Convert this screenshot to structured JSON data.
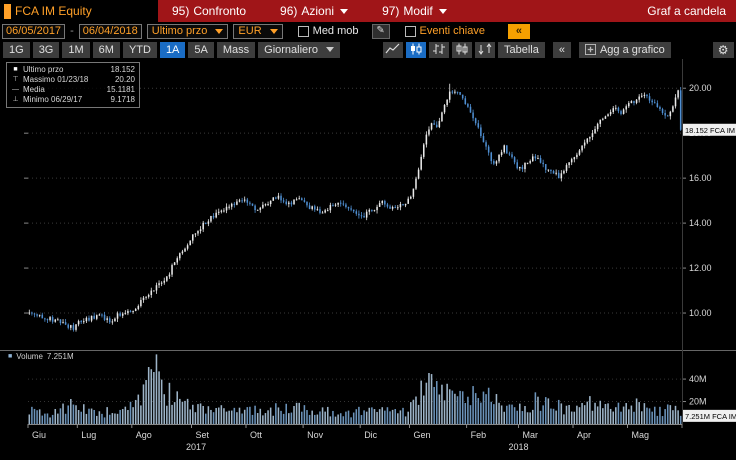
{
  "titlebar": {
    "security": "FCA IM Equity",
    "menus": [
      {
        "key": "95)",
        "label": "Confronto"
      },
      {
        "key": "96)",
        "label": "Azioni"
      },
      {
        "key": "97)",
        "label": "Modif"
      }
    ],
    "right_label": "Graf a candela"
  },
  "toolbar": {
    "date_from": "06/05/2017",
    "date_separator": "-",
    "date_to": "06/04/2018",
    "price_field": "Ultimo przo",
    "currency": "EUR",
    "med_mob": {
      "label": "Med mob",
      "checked": false
    },
    "eventi_chiave": {
      "label": "Eventi chiave",
      "checked": false
    },
    "pencil_icon": "✎",
    "panel_toggle_icon": "«"
  },
  "chart_toolbar": {
    "periods": [
      "1G",
      "3G",
      "1M",
      "6M",
      "YTD",
      "1A",
      "5A",
      "Mass"
    ],
    "selected_period": "1A",
    "frequency": "Giornaliero",
    "table_label": "Tabella",
    "collapse_icon": "«",
    "add_chart_label": "Agg a grafico",
    "gear_icon": "⚙"
  },
  "legend": {
    "rows": [
      {
        "marker": "■",
        "label": "Ultimo przo",
        "value": "18.152"
      },
      {
        "marker": "⊤",
        "label": "Massimo 01/23/18",
        "value": "20.20"
      },
      {
        "marker": "—",
        "label": "Media",
        "value": "15.1181"
      },
      {
        "marker": "⊥",
        "label": "Minimo 06/29/17",
        "value": "9.1718"
      }
    ]
  },
  "volume_legend": {
    "marker": "■",
    "label": "Volume",
    "value": "7.251M"
  },
  "chart_data": {
    "type": "candlestick_with_volume",
    "security": "FCA IM Equity",
    "currency": "EUR",
    "frequency": "daily",
    "date_range": {
      "from": "06/05/2017",
      "to": "06/04/2018"
    },
    "last_price": 18.152,
    "high": {
      "date": "01/23/18",
      "value": 20.2,
      "index": 162
    },
    "low": {
      "date": "06/29/17",
      "value": 9.1718,
      "index": 17
    },
    "mean": 15.1181,
    "last_volume": 7.251,
    "price_axis_ticks": [
      20,
      18,
      16,
      14,
      12,
      10
    ],
    "price_axis_labels": [
      "20.00",
      "18.00",
      "16.00",
      "14.00",
      "12.00",
      "10.00"
    ],
    "price_marker_label": "18.152 FCA IM",
    "volume_axis_ticks": [
      40,
      20
    ],
    "volume_axis_labels": [
      "40M",
      "20M"
    ],
    "volume_marker_label": "7.251M FCA IM",
    "volume_unit": "M",
    "ylim_price": [
      8.4,
      21.3
    ],
    "ylim_volume": [
      0,
      65
    ],
    "num_candles": 252,
    "seed": 42,
    "months": [
      [
        "Giu",
        0
      ],
      [
        "Lug",
        19
      ],
      [
        "Ago",
        40
      ],
      [
        "Set",
        63
      ],
      [
        "Ott",
        84
      ],
      [
        "Nov",
        106
      ],
      [
        "Dic",
        128
      ],
      [
        "Gen",
        147
      ],
      [
        "Feb",
        169
      ],
      [
        "Mar",
        189
      ],
      [
        "Apr",
        210
      ],
      [
        "Mag",
        231
      ]
    ],
    "years": [
      [
        "2017",
        0.257
      ],
      [
        "2018",
        0.75
      ]
    ],
    "price_keypoints": [
      [
        0,
        10.0
      ],
      [
        4,
        9.9
      ],
      [
        8,
        9.75
      ],
      [
        12,
        9.6
      ],
      [
        15,
        9.45
      ],
      [
        17,
        9.3
      ],
      [
        19,
        9.55
      ],
      [
        23,
        9.75
      ],
      [
        27,
        9.9
      ],
      [
        31,
        9.65
      ],
      [
        35,
        9.95
      ],
      [
        40,
        10.15
      ],
      [
        44,
        10.6
      ],
      [
        47,
        11.0
      ],
      [
        50,
        11.3
      ],
      [
        53,
        11.55
      ],
      [
        56,
        12.3
      ],
      [
        60,
        12.9
      ],
      [
        63,
        13.4
      ],
      [
        67,
        13.95
      ],
      [
        71,
        14.3
      ],
      [
        75,
        14.55
      ],
      [
        79,
        14.85
      ],
      [
        84,
        15.0
      ],
      [
        88,
        14.55
      ],
      [
        92,
        14.9
      ],
      [
        96,
        15.2
      ],
      [
        100,
        14.85
      ],
      [
        104,
        15.1
      ],
      [
        108,
        14.7
      ],
      [
        112,
        14.45
      ],
      [
        116,
        14.75
      ],
      [
        120,
        14.9
      ],
      [
        124,
        14.5
      ],
      [
        128,
        14.25
      ],
      [
        132,
        14.6
      ],
      [
        136,
        14.9
      ],
      [
        140,
        14.65
      ],
      [
        144,
        14.9
      ],
      [
        147,
        15.1
      ],
      [
        149,
        15.9
      ],
      [
        151,
        16.9
      ],
      [
        153,
        17.9
      ],
      [
        155,
        18.5
      ],
      [
        157,
        18.25
      ],
      [
        159,
        18.95
      ],
      [
        161,
        19.5
      ],
      [
        163,
        19.75
      ],
      [
        165,
        19.9
      ],
      [
        167,
        19.6
      ],
      [
        169,
        19.15
      ],
      [
        171,
        18.7
      ],
      [
        173,
        18.2
      ],
      [
        175,
        17.7
      ],
      [
        177,
        17.1
      ],
      [
        179,
        16.6
      ],
      [
        181,
        16.95
      ],
      [
        183,
        17.35
      ],
      [
        185,
        17.0
      ],
      [
        187,
        16.65
      ],
      [
        189,
        16.4
      ],
      [
        192,
        16.7
      ],
      [
        195,
        16.95
      ],
      [
        198,
        16.55
      ],
      [
        201,
        16.25
      ],
      [
        204,
        16.1
      ],
      [
        207,
        16.55
      ],
      [
        210,
        16.95
      ],
      [
        213,
        17.4
      ],
      [
        216,
        17.85
      ],
      [
        219,
        18.35
      ],
      [
        222,
        18.8
      ],
      [
        225,
        19.15
      ],
      [
        228,
        18.9
      ],
      [
        231,
        19.25
      ],
      [
        234,
        19.55
      ],
      [
        237,
        19.8
      ],
      [
        240,
        19.35
      ],
      [
        243,
        19.0
      ],
      [
        246,
        18.75
      ],
      [
        249,
        19.5
      ],
      [
        250,
        19.85
      ],
      [
        251,
        18.152
      ]
    ],
    "volume_keypoints": [
      [
        0,
        12
      ],
      [
        6,
        9
      ],
      [
        12,
        12
      ],
      [
        17,
        17
      ],
      [
        22,
        11
      ],
      [
        28,
        10
      ],
      [
        34,
        13
      ],
      [
        40,
        18
      ],
      [
        44,
        26
      ],
      [
        47,
        40
      ],
      [
        49,
        52
      ],
      [
        51,
        34
      ],
      [
        54,
        26
      ],
      [
        58,
        22
      ],
      [
        62,
        19
      ],
      [
        66,
        16
      ],
      [
        72,
        14
      ],
      [
        78,
        13
      ],
      [
        84,
        13
      ],
      [
        90,
        12
      ],
      [
        96,
        13
      ],
      [
        102,
        14
      ],
      [
        108,
        12
      ],
      [
        114,
        11
      ],
      [
        120,
        12
      ],
      [
        126,
        10
      ],
      [
        130,
        13
      ],
      [
        136,
        11
      ],
      [
        142,
        9
      ],
      [
        146,
        12
      ],
      [
        148,
        20
      ],
      [
        151,
        28
      ],
      [
        154,
        33
      ],
      [
        157,
        27
      ],
      [
        160,
        24
      ],
      [
        163,
        31
      ],
      [
        166,
        26
      ],
      [
        169,
        22
      ],
      [
        172,
        25
      ],
      [
        175,
        28
      ],
      [
        178,
        22
      ],
      [
        182,
        18
      ],
      [
        186,
        20
      ],
      [
        190,
        16
      ],
      [
        194,
        19
      ],
      [
        198,
        22
      ],
      [
        202,
        17
      ],
      [
        206,
        14
      ],
      [
        210,
        15
      ],
      [
        214,
        17
      ],
      [
        218,
        19
      ],
      [
        222,
        15
      ],
      [
        226,
        13
      ],
      [
        230,
        14
      ],
      [
        234,
        16
      ],
      [
        238,
        13
      ],
      [
        242,
        11
      ],
      [
        246,
        13
      ],
      [
        249,
        18
      ],
      [
        251,
        7.251
      ]
    ]
  }
}
